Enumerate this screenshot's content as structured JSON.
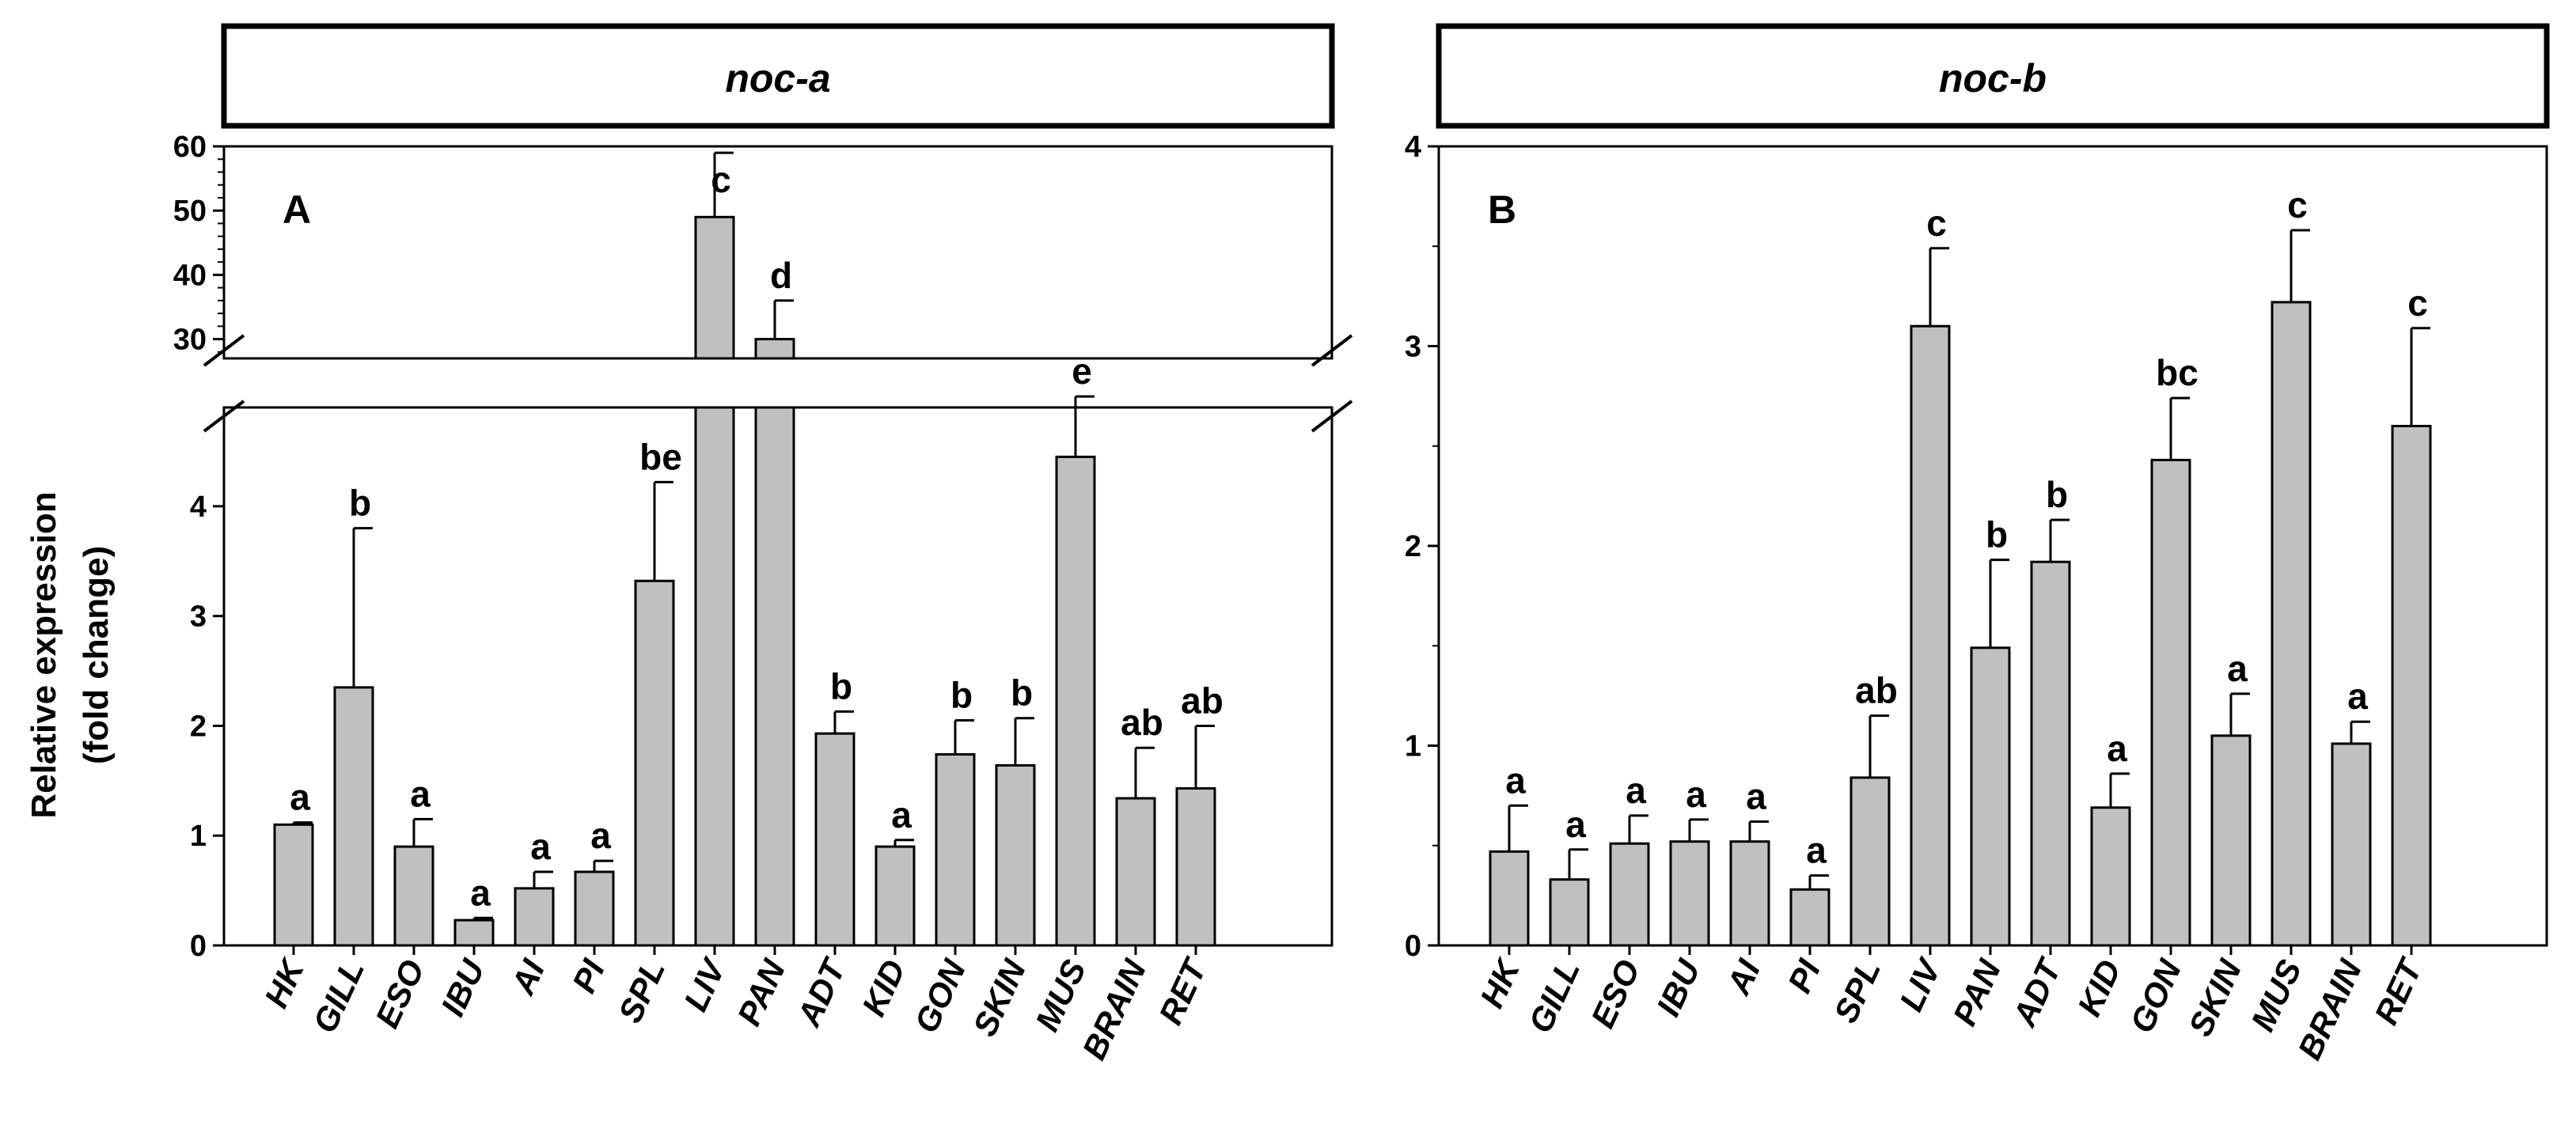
{
  "chart_data": [
    {
      "type": "bar",
      "panel_label": "A",
      "title": "noc-a",
      "ylabel_line1": "Relative expression",
      "ylabel_line2": "(fold change)",
      "categories": [
        "HK",
        "GILL",
        "ESO",
        "IBU",
        "AI",
        "PI",
        "SPL",
        "LIV",
        "PAN",
        "ADT",
        "KID",
        "GON",
        "SKIN",
        "MUS",
        "BRAIN",
        "RET"
      ],
      "values": [
        1.1,
        2.35,
        0.9,
        0.23,
        0.52,
        0.67,
        3.32,
        49,
        30,
        1.93,
        0.9,
        1.74,
        1.64,
        4.45,
        1.34,
        1.43
      ],
      "errors": [
        0.02,
        1.45,
        0.25,
        0.02,
        0.15,
        0.1,
        0.9,
        10,
        6,
        0.2,
        0.06,
        0.31,
        0.43,
        0.55,
        0.46,
        0.57
      ],
      "significance": [
        "a",
        "b",
        "a",
        "a",
        "a",
        "a",
        "be",
        "c",
        "d",
        "b",
        "a",
        "b",
        "b",
        "e",
        "ab",
        "ab"
      ],
      "y_axis_break": true,
      "ylim_lower": [
        0,
        4.9
      ],
      "ylim_upper": [
        27,
        60
      ],
      "yticks_lower": [
        "0",
        "1",
        "2",
        "3",
        "4"
      ],
      "yticks_upper": [
        "30",
        "40",
        "50",
        "60"
      ]
    },
    {
      "type": "bar",
      "panel_label": "B",
      "title": "noc-b",
      "categories": [
        "HK",
        "GILL",
        "ESO",
        "IBU",
        "AI",
        "PI",
        "SPL",
        "LIV",
        "PAN",
        "ADT",
        "KID",
        "GON",
        "SKIN",
        "MUS",
        "BRAIN",
        "RET"
      ],
      "values": [
        0.47,
        0.33,
        0.51,
        0.52,
        0.52,
        0.28,
        0.84,
        3.1,
        1.49,
        1.92,
        0.69,
        2.43,
        1.05,
        3.22,
        1.01,
        2.6
      ],
      "errors": [
        0.23,
        0.15,
        0.14,
        0.11,
        0.1,
        0.07,
        0.31,
        0.39,
        0.44,
        0.21,
        0.17,
        0.31,
        0.21,
        0.36,
        0.11,
        0.49
      ],
      "significance": [
        "a",
        "a",
        "a",
        "a",
        "a",
        "a",
        "ab",
        "c",
        "b",
        "b",
        "a",
        "bc",
        "a",
        "c",
        "a",
        "c"
      ],
      "ylim": [
        0,
        4
      ],
      "yticks": [
        "0",
        "1",
        "2",
        "3",
        "4"
      ]
    }
  ]
}
